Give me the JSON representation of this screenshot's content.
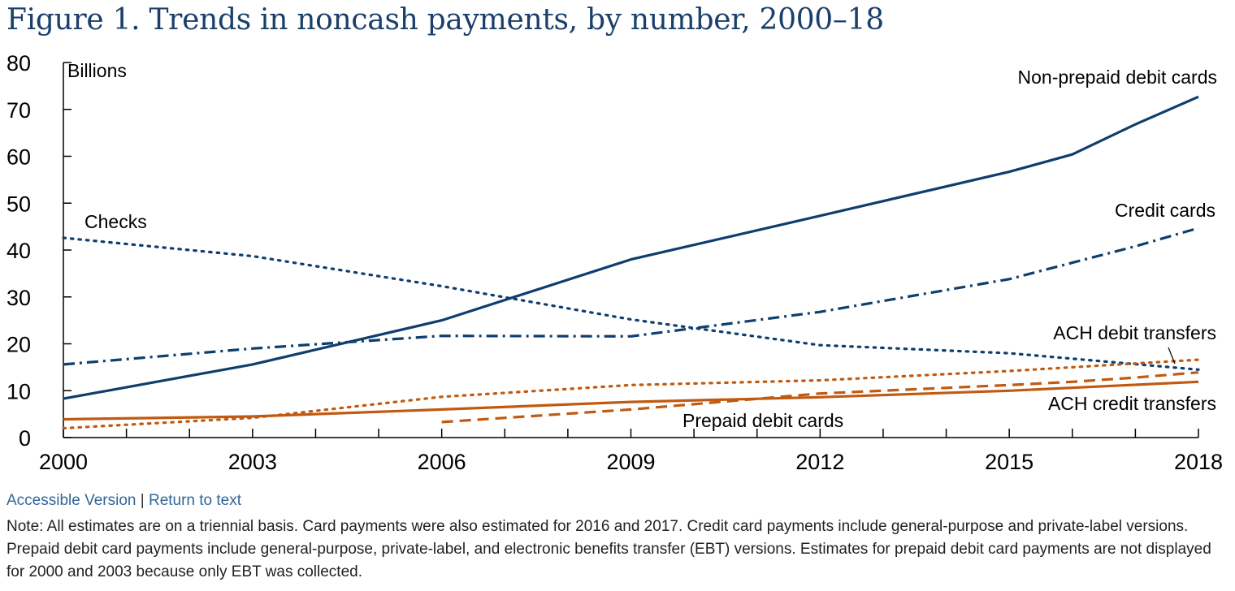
{
  "title": "Figure 1. Trends in noncash payments, by number, 2000–18",
  "links": {
    "accessible": "Accessible Version",
    "separator": "|",
    "return": "Return to text"
  },
  "note": "Note: All estimates are on a triennial basis. Card payments were also estimated for 2016 and 2017. Credit card payments include general-purpose and private-label versions. Prepaid debit card payments include general-purpose, private-label, and electronic benefits transfer (EBT) versions. Estimates for prepaid debit card payments are not displayed for 2000 and 2003 because only EBT was collected.",
  "colors": {
    "navy": "#0f3e6e",
    "orange": "#c15a11"
  },
  "chart_data": {
    "type": "line",
    "ylabel": "Billions",
    "xlim": [
      2000,
      2018
    ],
    "ylim": [
      0,
      80
    ],
    "xticks": [
      2000,
      2003,
      2006,
      2009,
      2012,
      2015,
      2018
    ],
    "yticks": [
      0,
      10,
      20,
      30,
      40,
      50,
      60,
      70,
      80
    ],
    "grid": false,
    "legend": "inline labels",
    "series": [
      {
        "name": "Non-prepaid debit cards",
        "color": "#0f3e6e",
        "dash": "solid",
        "x": [
          2000,
          2003,
          2006,
          2009,
          2012,
          2015,
          2016,
          2017,
          2018
        ],
        "y": [
          8.3,
          15.6,
          25.0,
          38.0,
          47.3,
          56.7,
          60.4,
          66.8,
          72.7
        ]
      },
      {
        "name": "Credit cards",
        "color": "#0f3e6e",
        "dash": "dashdot",
        "x": [
          2000,
          2003,
          2006,
          2009,
          2012,
          2015,
          2016,
          2017,
          2018
        ],
        "y": [
          15.6,
          19.0,
          21.7,
          21.6,
          26.8,
          33.8,
          37.3,
          40.8,
          44.7
        ]
      },
      {
        "name": "Checks",
        "color": "#0f3e6e",
        "dash": "dotted",
        "x": [
          2000,
          2003,
          2006,
          2009,
          2012,
          2015,
          2018
        ],
        "y": [
          42.6,
          38.7,
          32.3,
          25.2,
          19.7,
          18.0,
          14.5
        ]
      },
      {
        "name": "ACH debit transfers",
        "color": "#c15a11",
        "dash": "dotted",
        "x": [
          2000,
          2003,
          2006,
          2009,
          2012,
          2015,
          2018
        ],
        "y": [
          2.0,
          4.2,
          8.7,
          11.2,
          12.2,
          14.2,
          16.6
        ]
      },
      {
        "name": "ACH credit transfers",
        "color": "#c15a11",
        "dash": "solid",
        "x": [
          2000,
          2003,
          2006,
          2009,
          2012,
          2015,
          2018
        ],
        "y": [
          3.9,
          4.5,
          6.0,
          7.6,
          8.6,
          10.0,
          11.9
        ]
      },
      {
        "name": "Prepaid debit cards",
        "color": "#c15a11",
        "dash": "dashed",
        "x": [
          2006,
          2009,
          2012,
          2015,
          2016,
          2017,
          2018
        ],
        "y": [
          3.3,
          6.0,
          9.4,
          11.2,
          11.9,
          12.8,
          13.9
        ]
      }
    ]
  }
}
